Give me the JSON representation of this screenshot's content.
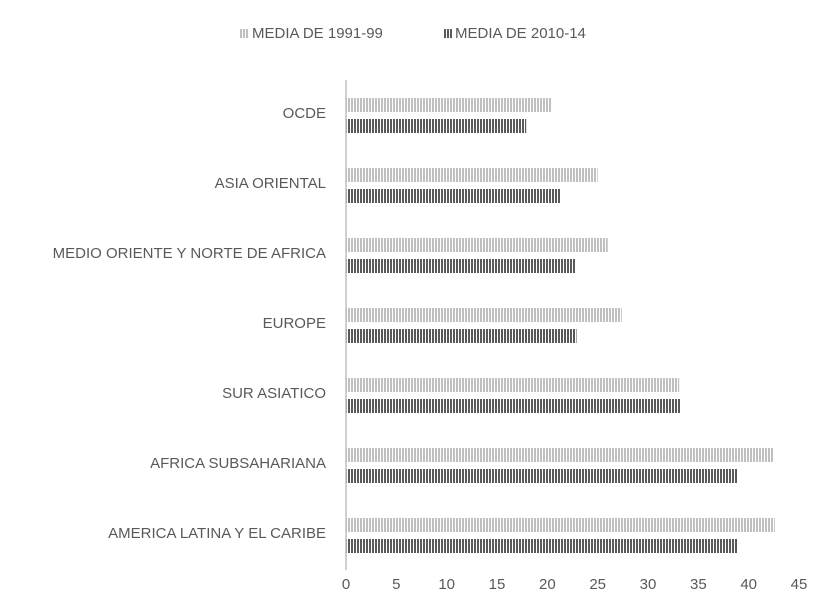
{
  "chart_data": {
    "type": "bar",
    "orientation": "horizontal",
    "categories": [
      "OCDE",
      "ASIA ORIENTAL",
      "MEDIO ORIENTE Y NORTE DE AFRICA",
      "EUROPE",
      "SUR ASIATICO",
      "AFRICA SUBSAHARIANA",
      "AMERICA LATINA Y EL CARIBE"
    ],
    "series": [
      {
        "name": "MEDIA DE 1991-99",
        "color": "#bfbfbf",
        "values": [
          20.4,
          25.0,
          26.0,
          27.4,
          33.1,
          42.5,
          42.6
        ]
      },
      {
        "name": "MEDIA DE 2010-14",
        "color": "#595959",
        "values": [
          17.9,
          21.3,
          22.8,
          22.9,
          33.2,
          38.9,
          38.9
        ]
      }
    ],
    "xlim": [
      0,
      45
    ],
    "xticks": [
      0,
      5,
      10,
      15,
      20,
      25,
      30,
      35,
      40,
      45
    ],
    "grid": false,
    "legend": "top"
  }
}
